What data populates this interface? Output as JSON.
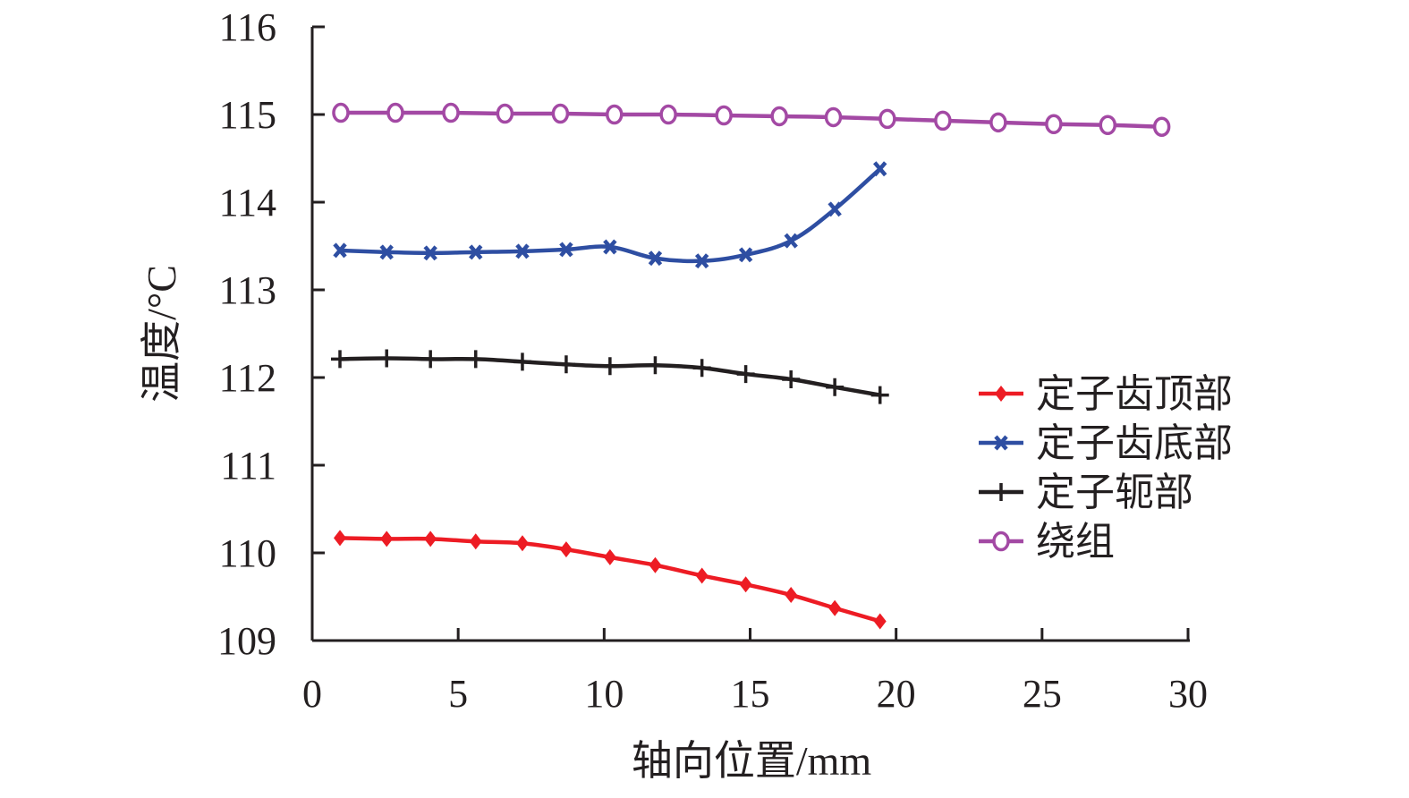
{
  "chart_data": {
    "type": "line",
    "title": "",
    "xlabel": "轴向位置/mm",
    "ylabel": "温度/°C",
    "xlim": [
      0,
      30
    ],
    "ylim": [
      109,
      116
    ],
    "xticks": [
      "0",
      "5",
      "10",
      "15",
      "20",
      "25",
      "30"
    ],
    "yticks": [
      "109",
      "110",
      "111",
      "112",
      "113",
      "114",
      "115",
      "116"
    ],
    "grid": false,
    "legend_position": "right",
    "series": [
      {
        "name": "定子齿顶部",
        "color": "#ed1c24",
        "marker": "diamond",
        "x": [
          0.95,
          2.55,
          4.05,
          5.6,
          7.2,
          8.7,
          10.2,
          11.75,
          13.35,
          14.85,
          16.4,
          17.9,
          19.45
        ],
        "y": [
          110.17,
          110.16,
          110.16,
          110.13,
          110.11,
          110.04,
          109.95,
          109.86,
          109.74,
          109.64,
          109.52,
          109.37,
          109.22
        ]
      },
      {
        "name": "定子齿底部",
        "color": "#2e4ea2",
        "marker": "x",
        "x": [
          0.95,
          2.55,
          4.05,
          5.6,
          7.2,
          8.7,
          10.2,
          11.75,
          13.35,
          14.85,
          16.4,
          17.9,
          19.45
        ],
        "y": [
          113.45,
          113.43,
          113.42,
          113.43,
          113.44,
          113.46,
          113.49,
          113.36,
          113.33,
          113.4,
          113.56,
          113.92,
          114.38
        ]
      },
      {
        "name": "定子轭部",
        "color": "#231f20",
        "marker": "plus",
        "x": [
          0.95,
          2.55,
          4.05,
          5.6,
          7.2,
          8.7,
          10.2,
          11.75,
          13.35,
          14.85,
          16.4,
          17.9,
          19.45
        ],
        "y": [
          112.21,
          112.22,
          112.21,
          112.21,
          112.18,
          112.15,
          112.13,
          112.14,
          112.11,
          112.04,
          111.98,
          111.89,
          111.8
        ]
      },
      {
        "name": "绕组",
        "color": "#a349a4",
        "marker": "circle",
        "x": [
          0.98,
          2.85,
          4.75,
          6.6,
          8.5,
          10.35,
          12.2,
          14.1,
          16.0,
          17.85,
          19.7,
          21.6,
          23.5,
          25.4,
          27.25,
          29.1
        ],
        "y": [
          115.02,
          115.02,
          115.02,
          115.01,
          115.01,
          115.0,
          115.0,
          114.99,
          114.98,
          114.97,
          114.95,
          114.93,
          114.91,
          114.89,
          114.88,
          114.86
        ]
      }
    ]
  }
}
